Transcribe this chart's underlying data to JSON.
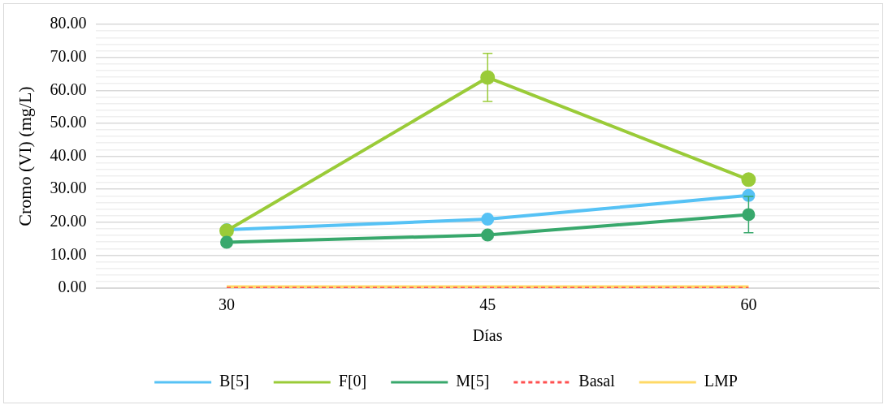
{
  "chart_data": {
    "type": "line",
    "xlabel": "Días",
    "ylabel": "Cromo (VI) (mg/L)",
    "categories": [
      "30",
      "45",
      "60"
    ],
    "series": [
      {
        "name": "B[5]",
        "color": "#56c2f5",
        "values": [
          17.7,
          20.9,
          28.1
        ],
        "marker": "circle"
      },
      {
        "name": "F[0]",
        "color": "#9acb38",
        "values": [
          17.4,
          63.9,
          32.9
        ],
        "errors": [
          null,
          7.3,
          null
        ],
        "marker": "circle"
      },
      {
        "name": "M[5]",
        "color": "#38a86c",
        "values": [
          13.9,
          16.1,
          22.3
        ],
        "errors": [
          null,
          null,
          5.5
        ],
        "marker": "circle"
      },
      {
        "name": "Basal",
        "color": "#ff5050",
        "values": [
          0.1,
          0.1,
          0.1
        ],
        "marker": "none",
        "line_style": "dashed"
      },
      {
        "name": "LMP",
        "color": "#ffd966",
        "values": [
          0.1,
          0.1,
          0.1
        ],
        "marker": "none",
        "line_style": "solid"
      }
    ],
    "ylim": [
      0,
      80
    ],
    "yticks": [
      {
        "value": 0,
        "label": "0.00"
      },
      {
        "value": 2,
        "label": null
      },
      {
        "value": 4,
        "label": null
      },
      {
        "value": 6,
        "label": null
      },
      {
        "value": 8,
        "label": null
      },
      {
        "value": 10,
        "label": "10.00"
      },
      {
        "value": 12,
        "label": null
      },
      {
        "value": 14,
        "label": null
      },
      {
        "value": 16,
        "label": null
      },
      {
        "value": 18,
        "label": null
      },
      {
        "value": 20,
        "label": "20.00"
      },
      {
        "value": 22,
        "label": null
      },
      {
        "value": 24,
        "label": null
      },
      {
        "value": 26,
        "label": null
      },
      {
        "value": 28,
        "label": null
      },
      {
        "value": 30,
        "label": "30.00"
      },
      {
        "value": 32,
        "label": null
      },
      {
        "value": 34,
        "label": null
      },
      {
        "value": 36,
        "label": null
      },
      {
        "value": 38,
        "label": null
      },
      {
        "value": 40,
        "label": "40.00"
      },
      {
        "value": 42,
        "label": null
      },
      {
        "value": 44,
        "label": null
      },
      {
        "value": 46,
        "label": null
      },
      {
        "value": 48,
        "label": null
      },
      {
        "value": 50,
        "label": "50.00"
      },
      {
        "value": 52,
        "label": null
      },
      {
        "value": 54,
        "label": null
      },
      {
        "value": 56,
        "label": null
      },
      {
        "value": 58,
        "label": null
      },
      {
        "value": 60,
        "label": "60.00"
      },
      {
        "value": 62,
        "label": null
      },
      {
        "value": 64,
        "label": null
      },
      {
        "value": 66,
        "label": null
      },
      {
        "value": 68,
        "label": null
      },
      {
        "value": 70,
        "label": "70.00"
      },
      {
        "value": 72,
        "label": null
      },
      {
        "value": 74,
        "label": null
      },
      {
        "value": 76,
        "label": null
      },
      {
        "value": 78,
        "label": null
      },
      {
        "value": 80,
        "label": "80.00"
      }
    ],
    "grid": "y",
    "legend": "bottom"
  }
}
